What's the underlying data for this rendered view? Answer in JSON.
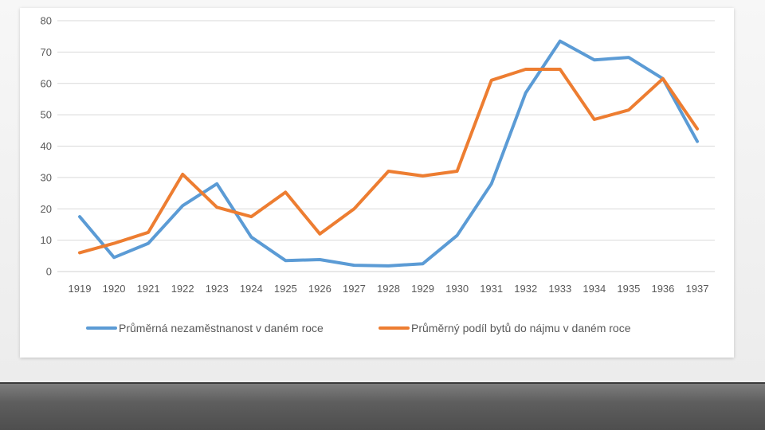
{
  "chart_data": {
    "type": "line",
    "x": [
      "1919",
      "1920",
      "1921",
      "1922",
      "1923",
      "1924",
      "1925",
      "1926",
      "1927",
      "1928",
      "1929",
      "1930",
      "1931",
      "1932",
      "1933",
      "1934",
      "1935",
      "1936",
      "1937"
    ],
    "ylim": [
      0,
      80
    ],
    "yticks": [
      "0",
      "10",
      "20",
      "30",
      "40",
      "50",
      "60",
      "70",
      "80"
    ],
    "grid": true,
    "legend_position": "bottom",
    "series": [
      {
        "name": "Průměrná nezaměstnanost v daném roce",
        "color": "#5b9bd5",
        "values": [
          17.5,
          4.5,
          9,
          21,
          28,
          11,
          3.5,
          3.8,
          2,
          1.8,
          2.5,
          11.5,
          28,
          57,
          73.5,
          67.5,
          68.3,
          61.5,
          41.5
        ]
      },
      {
        "name": "Průměrný podíl bytů do nájmu v daném roce",
        "color": "#ed7d31",
        "values": [
          6,
          9,
          12.5,
          31,
          20.5,
          17.5,
          25.3,
          12,
          20,
          32,
          30.5,
          32,
          61,
          64.5,
          64.5,
          48.5,
          51.5,
          61.5,
          45.5
        ]
      }
    ]
  }
}
